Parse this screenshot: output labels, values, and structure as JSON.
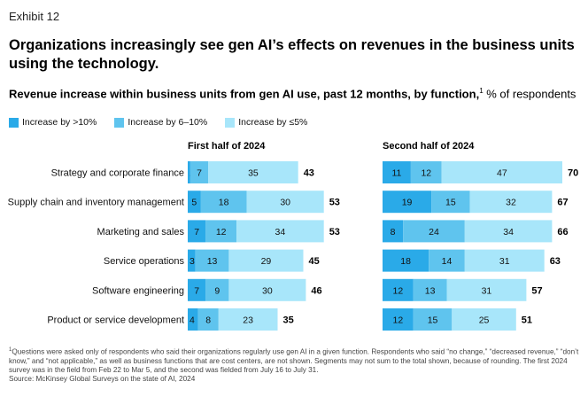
{
  "exhibit": "Exhibit 12",
  "title": "Organizations increasingly see gen AI’s effects on revenues in the business units using the technology.",
  "subtitle": {
    "bold": "Revenue increase within business units from gen AI use, past 12 months, by function,",
    "footnote_mark": "1",
    "rest": " % of respondents"
  },
  "colors": {
    "gt10": "#2aaae8",
    "six_to_ten": "#5fc4ee",
    "le5": "#a8e6fa"
  },
  "footnote": {
    "mark": "1",
    "text": "Questions were asked only of respondents who said their organizations regularly use gen AI in a given function. Respondents who said “no change,” “decreased revenue,” “don’t know,” and “not applicable,” as well as business functions that are cost centers, are not shown. Segments may not sum to the total shown, because of rounding. The first 2024 survey was in the field from Feb 22 to Mar 5, and the second was fielded from July 16 to July 31.",
    "source": "Source: McKinsey Global Surveys on the state of AI, 2024"
  },
  "chart_data": {
    "type": "bar",
    "stacked": true,
    "orientation": "horizontal",
    "categories": [
      "Strategy and corporate finance",
      "Supply chain and inventory management",
      "Marketing and sales",
      "Service operations",
      "Software engineering",
      "Product or service development"
    ],
    "legend": [
      "Increase by >10%",
      "Increase by 6–10%",
      "Increase by ≤5%"
    ],
    "panels": [
      {
        "title": "First half of 2024",
        "series": [
          {
            "name": "Increase by >10%",
            "values": [
              1,
              5,
              7,
              3,
              7,
              4
            ]
          },
          {
            "name": "Increase by 6–10%",
            "values": [
              7,
              18,
              12,
              13,
              9,
              8
            ]
          },
          {
            "name": "Increase by ≤5%",
            "values": [
              35,
              30,
              34,
              29,
              30,
              23
            ]
          }
        ],
        "totals": [
          43,
          53,
          53,
          45,
          46,
          35
        ]
      },
      {
        "title": "Second half of 2024",
        "series": [
          {
            "name": "Increase by >10%",
            "values": [
              11,
              19,
              8,
              18,
              12,
              12
            ]
          },
          {
            "name": "Increase by 6–10%",
            "values": [
              12,
              15,
              24,
              14,
              13,
              15
            ]
          },
          {
            "name": "Increase by ≤5%",
            "values": [
              47,
              32,
              34,
              31,
              31,
              25
            ]
          }
        ],
        "totals": [
          70,
          67,
          66,
          63,
          57,
          51
        ]
      }
    ]
  }
}
